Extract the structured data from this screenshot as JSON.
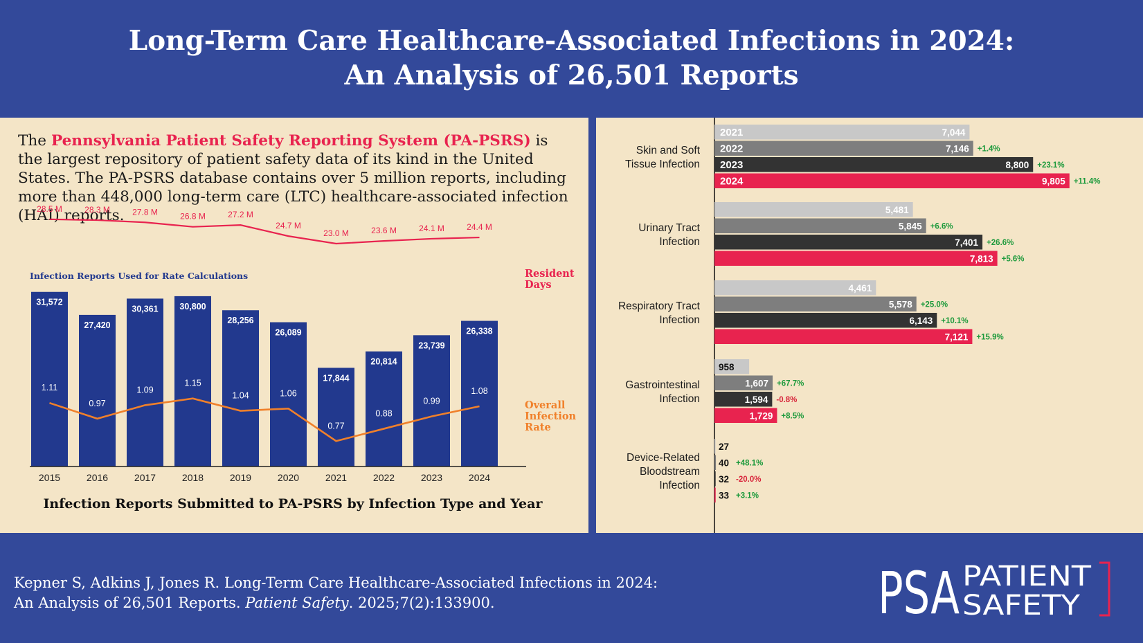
{
  "header": {
    "title_line1": "Long-Term Care Healthcare-Associated Infections in 2024:",
    "title_line2": "An Analysis of 26,501 Reports"
  },
  "intro": {
    "prefix": "The ",
    "highlight": "Pennsylvania Patient Safety Reporting System (PA-PSRS)",
    "suffix": " is the largest repository of patient safety data of its kind in the United States. The PA-PSRS database contains over 5 million reports, including more than 448,000 long-term care (LTC) healthcare-associated infection (HAI) reports."
  },
  "colors": {
    "navy": "#33499a",
    "bar_navy": "#22398e",
    "cream": "#f4e5c7",
    "pink": "#e8234f",
    "orange": "#f0802a",
    "gray_light": "#c8c8c8",
    "gray_mid": "#7e7e7e",
    "gray_dark": "#333333",
    "green": "#1d9a3c",
    "red": "#d8243a"
  },
  "footer": {
    "citation_line1": "Kepner S, Adkins J, Jones R. Long-Term Care Healthcare-Associated Infections in 2024:",
    "citation_line2_prefix": "An Analysis of 26,501 Reports. ",
    "citation_journal": "Patient Safety",
    "citation_line2_suffix": ". 2025;7(2):133900.",
    "logo_mark": "PSA",
    "logo_word1": "PATIENT",
    "logo_word2": "SAFETY"
  },
  "chart_data": [
    {
      "type": "bar",
      "title": "Infection Reports Submitted to PA-PSRS by Infection Type and Year",
      "bar_label": "Infection Reports Used for Rate Calculations",
      "categories": [
        "2015",
        "2016",
        "2017",
        "2018",
        "2019",
        "2020",
        "2021",
        "2022",
        "2023",
        "2024"
      ],
      "series": [
        {
          "name": "Infection Reports Used for Rate Calculations",
          "values": [
            31572,
            27420,
            30361,
            30800,
            28256,
            26089,
            17844,
            20814,
            23739,
            26338
          ],
          "labels": [
            "31,572",
            "27,420",
            "30,361",
            "30,800",
            "28,256",
            "26,089",
            "17,844",
            "20,814",
            "23,739",
            "26,338"
          ]
        },
        {
          "name": "Resident Days",
          "kind": "line",
          "values": [
            28.5,
            28.3,
            27.8,
            26.8,
            27.2,
            24.7,
            23.0,
            23.6,
            24.1,
            24.4
          ],
          "labels": [
            "28.5 M",
            "28.3 M",
            "27.8 M",
            "26.8 M",
            "27.2 M",
            "24.7 M",
            "23.0 M",
            "23.6 M",
            "24.1 M",
            "24.4 M"
          ]
        },
        {
          "name": "Overall Infection Rate",
          "kind": "line",
          "values": [
            1.11,
            0.97,
            1.09,
            1.15,
            1.04,
            1.06,
            0.77,
            0.88,
            0.99,
            1.08
          ],
          "labels": [
            "1.11",
            "0.97",
            "1.09",
            "1.15",
            "1.04",
            "1.06",
            "0.77",
            "0.88",
            "0.99",
            "1.08"
          ]
        }
      ],
      "series_label_lines": {
        "resident_days": [
          "Resident",
          "Days"
        ],
        "infection_rate": [
          "Overall",
          "Infection",
          "Rate"
        ]
      }
    },
    {
      "type": "bar",
      "orientation": "horizontal",
      "years": [
        "2021",
        "2022",
        "2023",
        "2024"
      ],
      "groups": [
        {
          "name_lines": [
            "Skin and Soft",
            "Tissue Infection"
          ],
          "values": [
            7044,
            7146,
            8800,
            9805
          ],
          "labels": [
            "7,044",
            "7,146",
            "8,800",
            "9,805"
          ],
          "changes": [
            "",
            "+1.4%",
            "+23.1%",
            "+11.4%"
          ]
        },
        {
          "name_lines": [
            "Urinary Tract",
            "Infection"
          ],
          "values": [
            5481,
            5845,
            7401,
            7813
          ],
          "labels": [
            "5,481",
            "5,845",
            "7,401",
            "7,813"
          ],
          "changes": [
            "",
            "+6.6%",
            "+26.6%",
            "+5.6%"
          ]
        },
        {
          "name_lines": [
            "Respiratory Tract",
            "Infection"
          ],
          "values": [
            4461,
            5578,
            6143,
            7121
          ],
          "labels": [
            "4,461",
            "5,578",
            "6,143",
            "7,121"
          ],
          "changes": [
            "",
            "+25.0%",
            "+10.1%",
            "+15.9%"
          ]
        },
        {
          "name_lines": [
            "Gastrointestinal",
            "Infection"
          ],
          "values": [
            958,
            1607,
            1594,
            1729
          ],
          "labels": [
            "958",
            "1,607",
            "1,594",
            "1,729"
          ],
          "changes": [
            "",
            "+67.7%",
            "-0.8%",
            "+8.5%"
          ]
        },
        {
          "name_lines": [
            "Device-Related",
            "Bloodstream",
            "Infection"
          ],
          "values": [
            27,
            40,
            32,
            33
          ],
          "labels": [
            "27",
            "40",
            "32",
            "33"
          ],
          "changes": [
            "",
            "+48.1%",
            "-20.0%",
            "+3.1%"
          ]
        }
      ]
    }
  ]
}
